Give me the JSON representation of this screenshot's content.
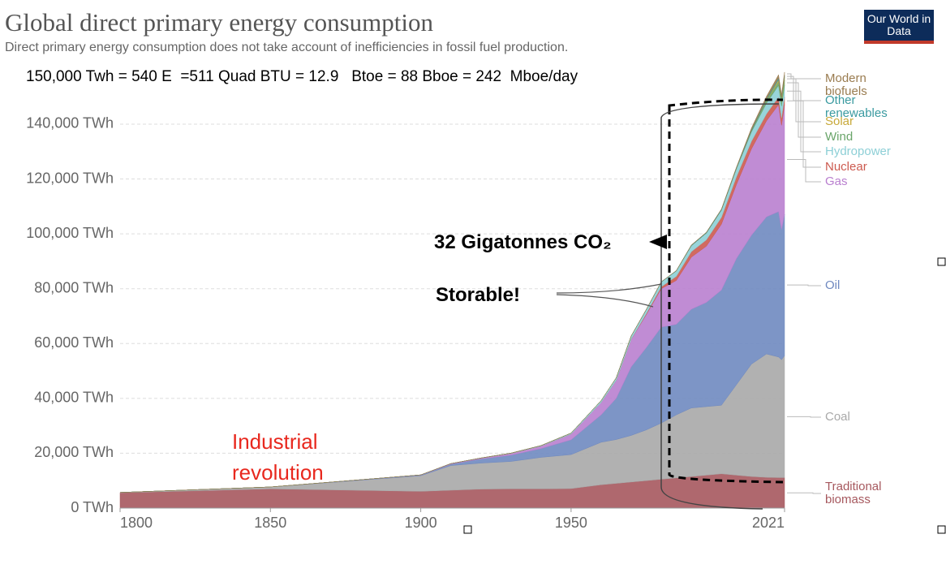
{
  "title": "Global direct primary energy consumption",
  "subtitle": "Direct primary energy consumption does not take account of inefficiencies in fossil fuel production.",
  "conversion_note": "150,000 Twh = 540 E  =511 Quad BTU = 12.9   Btoe = 88 Bboe = 242  Mboe/day",
  "logo": "Our World in Data",
  "chart_data": {
    "type": "stacked-area",
    "x": [
      1800,
      1850,
      1900,
      1910,
      1920,
      1930,
      1940,
      1950,
      1960,
      1965,
      1970,
      1975,
      1980,
      1985,
      1990,
      1995,
      2000,
      2005,
      2010,
      2015,
      2019,
      2020,
      2021
    ],
    "xlim": [
      1800,
      2021
    ],
    "xticks": [
      1800,
      1850,
      1900,
      1950,
      2021
    ],
    "ylim": [
      0,
      160000
    ],
    "yticks": [
      {
        "value": 0,
        "label": "0 TWh"
      },
      {
        "value": 20000,
        "label": "20,000 TWh"
      },
      {
        "value": 40000,
        "label": "40,000 TWh"
      },
      {
        "value": 60000,
        "label": "60,000 TWh"
      },
      {
        "value": 80000,
        "label": "80,000 TWh"
      },
      {
        "value": 100000,
        "label": "100,000 TWh"
      },
      {
        "value": 120000,
        "label": "120,000 TWh"
      },
      {
        "value": 140000,
        "label": "140,000 TWh"
      }
    ],
    "grid": true,
    "series": [
      {
        "name": "Traditional biomass",
        "color": "#a6585e",
        "values": [
          5600,
          7000,
          6100,
          6500,
          6900,
          7000,
          7000,
          7100,
          8500,
          9000,
          9500,
          10000,
          10500,
          11000,
          11500,
          12000,
          12500,
          12000,
          11500,
          11200,
          11100,
          11100,
          11100
        ]
      },
      {
        "name": "Coal",
        "color": "#a9a9a9",
        "values": [
          100,
          700,
          5700,
          9000,
          9500,
          10000,
          11500,
          12400,
          15500,
          16000,
          17000,
          18500,
          20500,
          23000,
          25000,
          25000,
          25000,
          33000,
          41000,
          45000,
          44000,
          43000,
          44500
        ]
      },
      {
        "name": "Oil",
        "color": "#6f89c0",
        "values": [
          0,
          0,
          200,
          500,
          1500,
          2300,
          3200,
          5400,
          10000,
          15000,
          25000,
          30000,
          35000,
          33000,
          36000,
          38000,
          42000,
          46000,
          47000,
          50000,
          53000,
          47500,
          51500
        ]
      },
      {
        "name": "Gas",
        "color": "#b97fcf",
        "values": [
          0,
          0,
          100,
          200,
          300,
          600,
          900,
          2100,
          4500,
          6500,
          10000,
          12000,
          14000,
          16000,
          19000,
          20500,
          24000,
          27000,
          31500,
          35000,
          39000,
          38000,
          40000
        ]
      },
      {
        "name": "Nuclear",
        "color": "#cc5a4f",
        "values": [
          0,
          0,
          0,
          0,
          0,
          0,
          0,
          0,
          0,
          30,
          80,
          400,
          700,
          1500,
          2000,
          2300,
          2500,
          2770,
          2760,
          2570,
          2800,
          2700,
          2800
        ]
      },
      {
        "name": "Hydropower",
        "color": "#8dcfd6",
        "values": [
          0,
          0,
          0,
          20,
          60,
          130,
          190,
          340,
          690,
          920,
          1180,
          1450,
          1730,
          1980,
          2160,
          2490,
          2640,
          2930,
          3430,
          3880,
          4220,
          4300,
          4270
        ]
      },
      {
        "name": "Wind",
        "color": "#6aa56a",
        "values": [
          0,
          0,
          0,
          0,
          0,
          0,
          0,
          0,
          0,
          0,
          0,
          0,
          0,
          0,
          4,
          8,
          31,
          104,
          346,
          831,
          1420,
          1590,
          1860
        ]
      },
      {
        "name": "Solar",
        "color": "#c8a93a",
        "values": [
          0,
          0,
          0,
          0,
          0,
          0,
          0,
          0,
          0,
          0,
          0,
          0,
          0,
          0,
          0,
          0,
          0,
          4,
          32,
          256,
          704,
          856,
          1030
        ]
      },
      {
        "name": "Other renewables",
        "color": "#3a9aa0",
        "values": [
          0,
          0,
          0,
          0,
          0,
          0,
          0,
          0,
          0,
          30,
          40,
          50,
          80,
          120,
          180,
          200,
          240,
          300,
          400,
          520,
          620,
          650,
          700
        ]
      },
      {
        "name": "Modern biofuels",
        "color": "#9a7c50",
        "values": [
          0,
          0,
          0,
          0,
          0,
          0,
          0,
          0,
          0,
          0,
          0,
          0,
          0,
          0,
          100,
          100,
          110,
          220,
          640,
          900,
          1150,
          1100,
          1200
        ]
      }
    ],
    "annotations": [
      "32 Gigatonnes  CO₂",
      "Storable!",
      "Industrial revolution"
    ]
  }
}
